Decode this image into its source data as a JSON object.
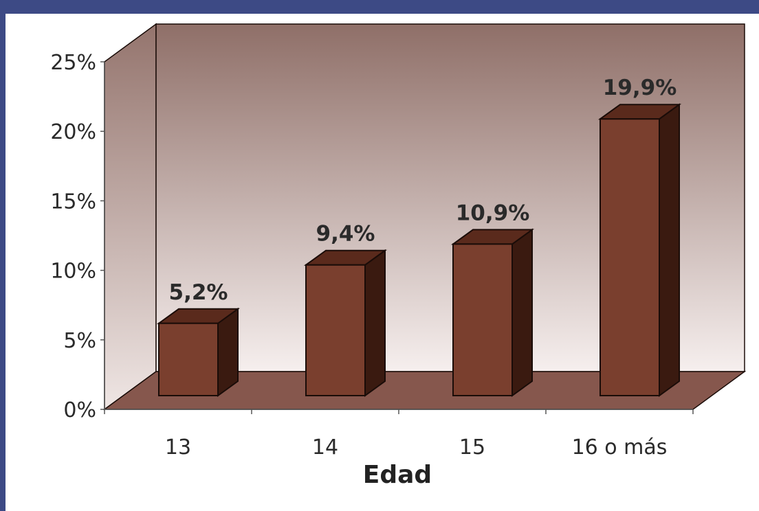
{
  "colors": {
    "slide_background": "#3d4a85",
    "chart_background": "#ffffff",
    "wall_top": "#8f6f68",
    "wall_bottom": "#f6efee",
    "side_wall_top": "#94746d",
    "side_wall_bottom": "#efe6e4",
    "floor": "#86574d",
    "bar_front": "#7a3f2e",
    "bar_top": "#5a2a1c",
    "bar_side": "#3a1a10",
    "outline": "#1a0c08"
  },
  "chart_data": {
    "type": "bar",
    "style": "3d",
    "categories": [
      "13",
      "14",
      "15",
      "16 o más"
    ],
    "values": [
      5.2,
      9.4,
      10.9,
      19.9
    ],
    "value_labels": [
      "5,2%",
      "9,4%",
      "10,9%",
      "19,9%"
    ],
    "ytick_labels": [
      "0%",
      "5%",
      "10%",
      "15%",
      "20%",
      "25%"
    ],
    "yticks": [
      0,
      5,
      10,
      15,
      20,
      25
    ],
    "ylim": [
      0,
      25
    ],
    "xlabel": "Edad",
    "ylabel": "",
    "title": "",
    "grid": false,
    "legend": "none"
  }
}
